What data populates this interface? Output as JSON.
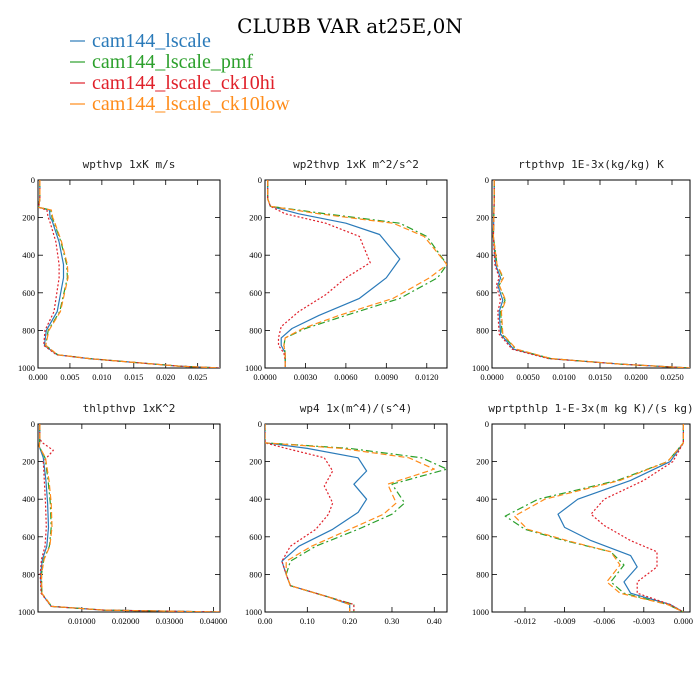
{
  "title": "CLUBB VAR at25E,0N",
  "legend": [
    {
      "label": "cam144_lscale",
      "color": "#2a7ab9",
      "dash": "solid"
    },
    {
      "label": "cam144_lscale_pmf",
      "color": "#2ca02c",
      "dash": "dashdot"
    },
    {
      "label": "cam144_lscale_ck10hi",
      "color": "#e0202a",
      "dash": "dotted"
    },
    {
      "label": "cam144_lscale_ck10low",
      "color": "#ff8c1a",
      "dash": "dashed"
    }
  ],
  "chart_data": [
    {
      "type": "line",
      "title": "wpthvp  1xK m/s",
      "xlim": [
        0,
        0.0285
      ],
      "ylim": [
        0,
        1000
      ],
      "yinvert": true,
      "xticks": [
        0.0,
        0.005,
        0.01,
        0.015,
        0.02,
        0.025
      ],
      "xticklabels": [
        "0.000",
        "0.005",
        "0.010",
        "0.015",
        "0.020",
        "0.025"
      ],
      "yticks": [
        0,
        200,
        400,
        600,
        800,
        1000
      ],
      "yticklabels": [
        "0",
        "200",
        "400",
        "600",
        "800",
        "1000"
      ],
      "series": [
        {
          "x": [
            0.0003,
            0.0003,
            0.0001,
            0.0018,
            0.0019,
            0.0022,
            0.0033,
            0.004,
            0.004,
            0.003,
            0.0013,
            0.001,
            0.003,
            0.008,
            0.015,
            0.022,
            0.0285
          ],
          "y": [
            0,
            100,
            145,
            160,
            200,
            215,
            330,
            450,
            520,
            700,
            800,
            880,
            930,
            950,
            970,
            990,
            1000
          ]
        },
        {
          "x": [
            0.0003,
            0.0003,
            0.0001,
            0.002,
            0.0022,
            0.0024,
            0.0036,
            0.0045,
            0.0046,
            0.0034,
            0.0016,
            0.0012,
            0.0031,
            0.0081,
            0.015,
            0.022,
            0.0285
          ],
          "y": [
            0,
            100,
            145,
            160,
            200,
            215,
            330,
            450,
            520,
            700,
            800,
            880,
            930,
            950,
            970,
            990,
            1000
          ]
        },
        {
          "x": [
            0.0003,
            0.0003,
            0.0001,
            0.0014,
            0.0016,
            0.0018,
            0.0028,
            0.0033,
            0.0033,
            0.0025,
            0.0011,
            0.0009,
            0.0029,
            0.0079,
            0.015,
            0.022,
            0.0285
          ],
          "y": [
            0,
            100,
            145,
            160,
            200,
            215,
            330,
            450,
            520,
            700,
            800,
            880,
            930,
            950,
            970,
            990,
            1000
          ]
        },
        {
          "x": [
            0.0003,
            0.0003,
            0.0001,
            0.0021,
            0.0023,
            0.0025,
            0.0037,
            0.0046,
            0.0047,
            0.0035,
            0.0017,
            0.0012,
            0.0031,
            0.0081,
            0.015,
            0.022,
            0.0285
          ],
          "y": [
            0,
            100,
            145,
            160,
            200,
            215,
            330,
            450,
            520,
            700,
            800,
            880,
            930,
            950,
            970,
            990,
            1000
          ]
        }
      ]
    },
    {
      "type": "line",
      "title": "wp2thvp  1xK m^2/s^2",
      "xlim": [
        0,
        0.0135
      ],
      "ylim": [
        0,
        1000
      ],
      "yinvert": true,
      "xticks": [
        0.0,
        0.003,
        0.006,
        0.009,
        0.012
      ],
      "xticklabels": [
        "0.0000",
        "0.0030",
        "0.0060",
        "0.0090",
        "0.0120"
      ],
      "yticks": [
        0,
        200,
        400,
        600,
        800,
        1000
      ],
      "yticklabels": [
        "0",
        "200",
        "400",
        "600",
        "800",
        "1000"
      ],
      "series": [
        {
          "x": [
            0.0002,
            0.0002,
            0.0004,
            0.0025,
            0.006,
            0.0085,
            0.01,
            0.009,
            0.007,
            0.004,
            0.002,
            0.0012,
            0.0012,
            0.0015,
            0.0015,
            0.0015
          ],
          "y": [
            0,
            100,
            140,
            180,
            230,
            290,
            420,
            520,
            630,
            720,
            790,
            840,
            880,
            920,
            960,
            1000
          ]
        },
        {
          "x": [
            0.0002,
            0.0002,
            0.0004,
            0.0045,
            0.01,
            0.012,
            0.0135,
            0.0128,
            0.01,
            0.006,
            0.003,
            0.0015,
            0.0014,
            0.0015,
            0.0015,
            0.0015
          ],
          "y": [
            0,
            100,
            140,
            180,
            230,
            300,
            450,
            520,
            630,
            720,
            790,
            840,
            880,
            920,
            960,
            1000
          ]
        },
        {
          "x": [
            0.0002,
            0.0002,
            0.0004,
            0.0015,
            0.0045,
            0.007,
            0.0078,
            0.006,
            0.0045,
            0.0025,
            0.0012,
            0.001,
            0.001,
            0.0014,
            0.0015,
            0.0015
          ],
          "y": [
            0,
            100,
            140,
            180,
            230,
            300,
            440,
            520,
            610,
            700,
            780,
            840,
            880,
            920,
            960,
            1000
          ]
        },
        {
          "x": [
            0.0002,
            0.0002,
            0.0004,
            0.004,
            0.0095,
            0.0118,
            0.0135,
            0.0122,
            0.0095,
            0.0055,
            0.0028,
            0.0015,
            0.0014,
            0.0015,
            0.0015,
            0.0015
          ],
          "y": [
            0,
            100,
            140,
            180,
            230,
            300,
            450,
            520,
            630,
            720,
            790,
            840,
            880,
            920,
            960,
            1000
          ]
        }
      ]
    },
    {
      "type": "line",
      "title": "rtpthvp  1E-3x(kg/kg) K",
      "xlim": [
        0,
        0.0275
      ],
      "ylim": [
        0,
        1000
      ],
      "yinvert": true,
      "xticks": [
        0.0,
        0.005,
        0.01,
        0.015,
        0.02,
        0.025
      ],
      "xticklabels": [
        "0.0000",
        "0.0050",
        "0.0100",
        "0.0150",
        "0.0200",
        "0.0250"
      ],
      "yticks": [
        0,
        200,
        400,
        600,
        800,
        1000
      ],
      "yticklabels": [
        "0",
        "200",
        "400",
        "600",
        "800",
        "1000"
      ],
      "series": [
        {
          "x": [
            0.0003,
            0.0003,
            0.0002,
            0.0005,
            0.0012,
            0.0008,
            0.0015,
            0.001,
            0.0012,
            0.003,
            0.008,
            0.018,
            0.0275
          ],
          "y": [
            0,
            100,
            300,
            450,
            520,
            560,
            640,
            700,
            820,
            900,
            950,
            980,
            1000
          ]
        },
        {
          "x": [
            0.0003,
            0.0003,
            0.0002,
            0.0007,
            0.0015,
            0.001,
            0.0018,
            0.0012,
            0.0014,
            0.0033,
            0.0082,
            0.018,
            0.0275
          ],
          "y": [
            0,
            100,
            300,
            450,
            520,
            560,
            640,
            700,
            820,
            900,
            950,
            980,
            1000
          ]
        },
        {
          "x": [
            0.0003,
            0.0003,
            0.0002,
            0.0004,
            0.001,
            0.0006,
            0.0012,
            0.0008,
            0.001,
            0.0028,
            0.0078,
            0.018,
            0.0275
          ],
          "y": [
            0,
            100,
            300,
            450,
            520,
            560,
            640,
            700,
            820,
            900,
            950,
            980,
            1000
          ]
        },
        {
          "x": [
            0.0003,
            0.0003,
            0.0002,
            0.0007,
            0.0016,
            0.001,
            0.0019,
            0.0013,
            0.0015,
            0.0034,
            0.0082,
            0.018,
            0.0275
          ],
          "y": [
            0,
            100,
            300,
            450,
            520,
            560,
            640,
            700,
            820,
            900,
            950,
            980,
            1000
          ]
        }
      ]
    },
    {
      "type": "line",
      "title": "thlpthvp  1xK^2",
      "xlim": [
        0,
        0.0415
      ],
      "ylim": [
        0,
        1000
      ],
      "yinvert": true,
      "xticks": [
        0.01,
        0.02,
        0.03,
        0.04
      ],
      "xticklabels": [
        "0.01000",
        "0.02000",
        "0.03000",
        "0.04000"
      ],
      "yticks": [
        0,
        200,
        400,
        600,
        800,
        1000
      ],
      "yticklabels": [
        "0",
        "200",
        "400",
        "600",
        "800",
        "1000"
      ],
      "series": [
        {
          "x": [
            0.0004,
            0.0004,
            0.0003,
            0.0012,
            0.0018,
            0.0022,
            0.0024,
            0.002,
            0.001,
            0.0006,
            0.0008,
            0.003,
            0.015,
            0.0415
          ],
          "y": [
            0,
            80,
            120,
            180,
            300,
            420,
            550,
            650,
            720,
            800,
            900,
            970,
            990,
            1000
          ]
        },
        {
          "x": [
            0.0004,
            0.0004,
            0.0003,
            0.0016,
            0.0023,
            0.0028,
            0.003,
            0.0026,
            0.0013,
            0.0008,
            0.0009,
            0.0031,
            0.015,
            0.0415
          ],
          "y": [
            0,
            80,
            120,
            180,
            300,
            420,
            550,
            650,
            720,
            800,
            900,
            970,
            990,
            1000
          ]
        },
        {
          "x": [
            0.0004,
            0.0004,
            0.001,
            0.0035,
            0.0012,
            0.0017,
            0.0019,
            0.0016,
            0.0008,
            0.0005,
            0.0007,
            0.003,
            0.015,
            0.0415
          ],
          "y": [
            0,
            80,
            100,
            140,
            200,
            420,
            550,
            650,
            720,
            800,
            900,
            970,
            990,
            1000
          ]
        },
        {
          "x": [
            0.0004,
            0.0004,
            0.0003,
            0.0017,
            0.0025,
            0.003,
            0.0032,
            0.0027,
            0.0014,
            0.0008,
            0.0009,
            0.0031,
            0.015,
            0.0415
          ],
          "y": [
            0,
            80,
            120,
            180,
            300,
            420,
            550,
            650,
            720,
            800,
            900,
            970,
            990,
            1000
          ]
        }
      ]
    },
    {
      "type": "line",
      "title": "wp4  1x(m^4)/(s^4)",
      "xlim": [
        0,
        0.43
      ],
      "ylim": [
        0,
        1000
      ],
      "yinvert": true,
      "xticks": [
        0.0,
        0.1,
        0.2,
        0.3,
        0.4
      ],
      "xticklabels": [
        "0.00",
        "0.10",
        "0.20",
        "0.30",
        "0.40"
      ],
      "yticks": [
        0,
        200,
        400,
        600,
        800,
        1000
      ],
      "yticklabels": [
        "0",
        "200",
        "400",
        "600",
        "800",
        "1000"
      ],
      "series": [
        {
          "x": [
            0.0,
            0.0,
            0.1,
            0.22,
            0.24,
            0.21,
            0.24,
            0.22,
            0.16,
            0.08,
            0.04,
            0.05,
            0.06,
            0.15,
            0.2,
            0.2
          ],
          "y": [
            0,
            100,
            130,
            180,
            250,
            320,
            400,
            470,
            560,
            650,
            730,
            800,
            860,
            920,
            960,
            1000
          ]
        },
        {
          "x": [
            0.0,
            0.0,
            0.2,
            0.37,
            0.43,
            0.3,
            0.33,
            0.3,
            0.22,
            0.12,
            0.06,
            0.05,
            0.06,
            0.15,
            0.21,
            0.21
          ],
          "y": [
            0,
            100,
            130,
            180,
            240,
            320,
            420,
            480,
            560,
            650,
            730,
            800,
            860,
            920,
            960,
            1000
          ]
        },
        {
          "x": [
            0.0,
            0.0,
            0.05,
            0.14,
            0.16,
            0.14,
            0.16,
            0.15,
            0.12,
            0.06,
            0.04,
            0.05,
            0.06,
            0.15,
            0.21,
            0.21
          ],
          "y": [
            0,
            100,
            130,
            180,
            250,
            330,
            420,
            480,
            560,
            650,
            730,
            800,
            860,
            920,
            960,
            1000
          ]
        },
        {
          "x": [
            0.0,
            0.0,
            0.18,
            0.34,
            0.4,
            0.29,
            0.31,
            0.28,
            0.2,
            0.11,
            0.05,
            0.05,
            0.06,
            0.15,
            0.2,
            0.2
          ],
          "y": [
            0,
            100,
            130,
            180,
            240,
            320,
            420,
            480,
            560,
            650,
            730,
            800,
            860,
            920,
            960,
            1000
          ]
        }
      ]
    },
    {
      "type": "line",
      "title": "wprtpthlp  1-E-3x(m kg K)/(s kg)",
      "xlim": [
        -0.0145,
        0.0005
      ],
      "ylim": [
        0,
        1000
      ],
      "yinvert": true,
      "xticks": [
        -0.012,
        -0.009,
        -0.006,
        -0.003,
        0.0
      ],
      "xticklabels": [
        "-0.012",
        "-0.009",
        "-0.006",
        "-0.003",
        "0.000"
      ],
      "yticks": [
        0,
        200,
        400,
        600,
        800,
        1000
      ],
      "yticklabels": [
        "0",
        "200",
        "400",
        "600",
        "800",
        "1000"
      ],
      "series": [
        {
          "x": [
            0.0,
            0.0,
            -0.001,
            -0.004,
            -0.008,
            -0.0095,
            -0.009,
            -0.007,
            -0.004,
            -0.0035,
            -0.0045,
            -0.004,
            -0.001,
            0.0
          ],
          "y": [
            0,
            100,
            200,
            300,
            400,
            480,
            550,
            620,
            700,
            760,
            840,
            900,
            960,
            1000
          ]
        },
        {
          "x": [
            0.0,
            0.0,
            -0.0012,
            -0.005,
            -0.011,
            -0.0135,
            -0.012,
            -0.009,
            -0.0055,
            -0.0045,
            -0.0055,
            -0.0045,
            -0.0012,
            0.0
          ],
          "y": [
            0,
            100,
            200,
            300,
            400,
            490,
            560,
            620,
            680,
            750,
            840,
            900,
            960,
            1000
          ]
        },
        {
          "x": [
            0.0,
            0.0,
            -0.0008,
            -0.003,
            -0.006,
            -0.007,
            -0.006,
            -0.004,
            -0.002,
            -0.002,
            -0.0035,
            -0.0035,
            -0.001,
            0.0
          ],
          "y": [
            0,
            100,
            200,
            300,
            400,
            480,
            540,
            620,
            680,
            760,
            840,
            900,
            960,
            1000
          ]
        },
        {
          "x": [
            0.0,
            0.0,
            -0.0012,
            -0.0048,
            -0.0105,
            -0.0128,
            -0.0118,
            -0.0088,
            -0.0055,
            -0.0048,
            -0.0058,
            -0.0048,
            -0.0012,
            0.0
          ],
          "y": [
            0,
            100,
            200,
            300,
            400,
            490,
            560,
            620,
            680,
            750,
            840,
            900,
            960,
            1000
          ]
        }
      ]
    }
  ]
}
